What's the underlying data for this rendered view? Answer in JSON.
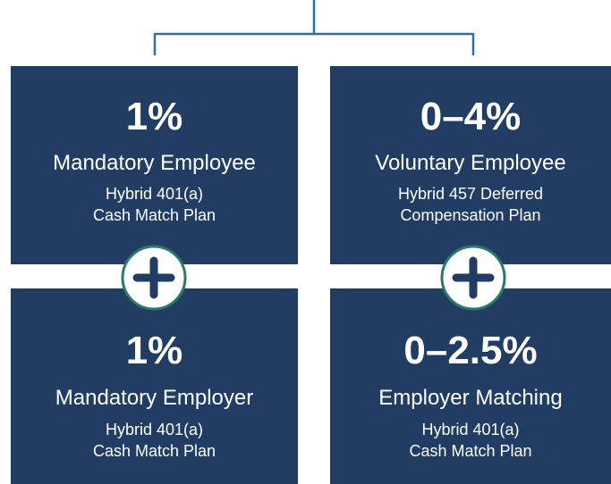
{
  "boxes": [
    {
      "value": "1%",
      "title": "Mandatory Employee",
      "lines": [
        "Hybrid 401(a)",
        "Cash Match Plan"
      ]
    },
    {
      "value": "0–4%",
      "title": "Voluntary Employee",
      "lines": [
        "Hybrid 457 Deferred",
        "Compensation Plan"
      ]
    },
    {
      "value": "1%",
      "title": "Mandatory Employer",
      "lines": [
        "Hybrid 401(a)",
        "Cash Match Plan"
      ]
    },
    {
      "value": "0–2.5%",
      "title": "Employer Matching",
      "lines": [
        "Hybrid 401(a)",
        "Cash Match Plan"
      ]
    }
  ]
}
